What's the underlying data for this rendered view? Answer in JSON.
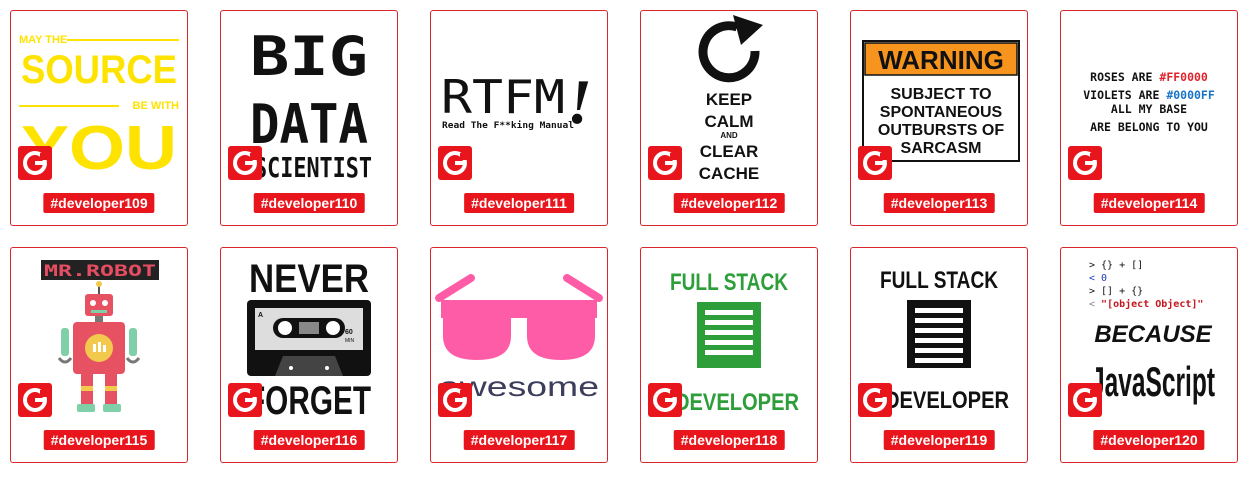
{
  "stickers": [
    {
      "tag": "#developer109",
      "art": {
        "l1": "MAY THE",
        "l2": "SOURCE",
        "l3": "BE WITH",
        "l4": "YOU"
      }
    },
    {
      "tag": "#developer110",
      "art": {
        "l1": "BIG",
        "l2": "DATA",
        "l3": "SCIENTIST"
      }
    },
    {
      "tag": "#developer111",
      "art": {
        "l1": "RTFM",
        "l2": "!",
        "l3": "Read The F**king Manual"
      }
    },
    {
      "tag": "#developer112",
      "art": {
        "l1": "KEEP",
        "l2": "CALM",
        "l3": "AND",
        "l4": "CLEAR",
        "l5": "CACHE"
      }
    },
    {
      "tag": "#developer113",
      "art": {
        "l1": "WARNING",
        "l2": "SUBJECT TO",
        "l3": "SPONTANEOUS",
        "l4": "OUTBURSTS OF",
        "l5": "SARCASM"
      }
    },
    {
      "tag": "#developer114",
      "art": {
        "l1a": "ROSES ARE ",
        "l1b": "#FF0000",
        "l2a": "VIOLETS ARE ",
        "l2b": "#0000FF",
        "l3": "ALL MY BASE",
        "l4": "ARE BELONG TO YOU"
      }
    },
    {
      "tag": "#developer115",
      "art": {
        "l1": "MR.ROBOT"
      }
    },
    {
      "tag": "#developer116",
      "art": {
        "l1": "NEVER",
        "l2": "FORGET",
        "l3": "A",
        "l4": "60",
        "l5": "MIN"
      }
    },
    {
      "tag": "#developer117",
      "art": {
        "l1": "awesome"
      }
    },
    {
      "tag": "#developer118",
      "art": {
        "l1": "FULL STACK",
        "l2": "DEVELOPER"
      }
    },
    {
      "tag": "#developer119",
      "art": {
        "l1": "FULL STACK",
        "l2": "DEVELOPER"
      }
    },
    {
      "tag": "#developer120",
      "art": {
        "c1": "> {} + []",
        "c2": "< 0",
        "c3": "> [] + {}",
        "c4a": "< ",
        "c4b": "\"[object Object]\"",
        "l1": "BECAUSE",
        "l2": "JavaScript"
      }
    }
  ],
  "colors": {
    "border": "#d9262c",
    "tag_bg": "#e8161c",
    "logo": "#e8161c",
    "yellow": "#ffe300",
    "pink": "#ff5ca8",
    "green": "#2e9e3a",
    "warning_orange": "#f7941d"
  },
  "icons": {
    "badge": "g-logo-icon"
  }
}
